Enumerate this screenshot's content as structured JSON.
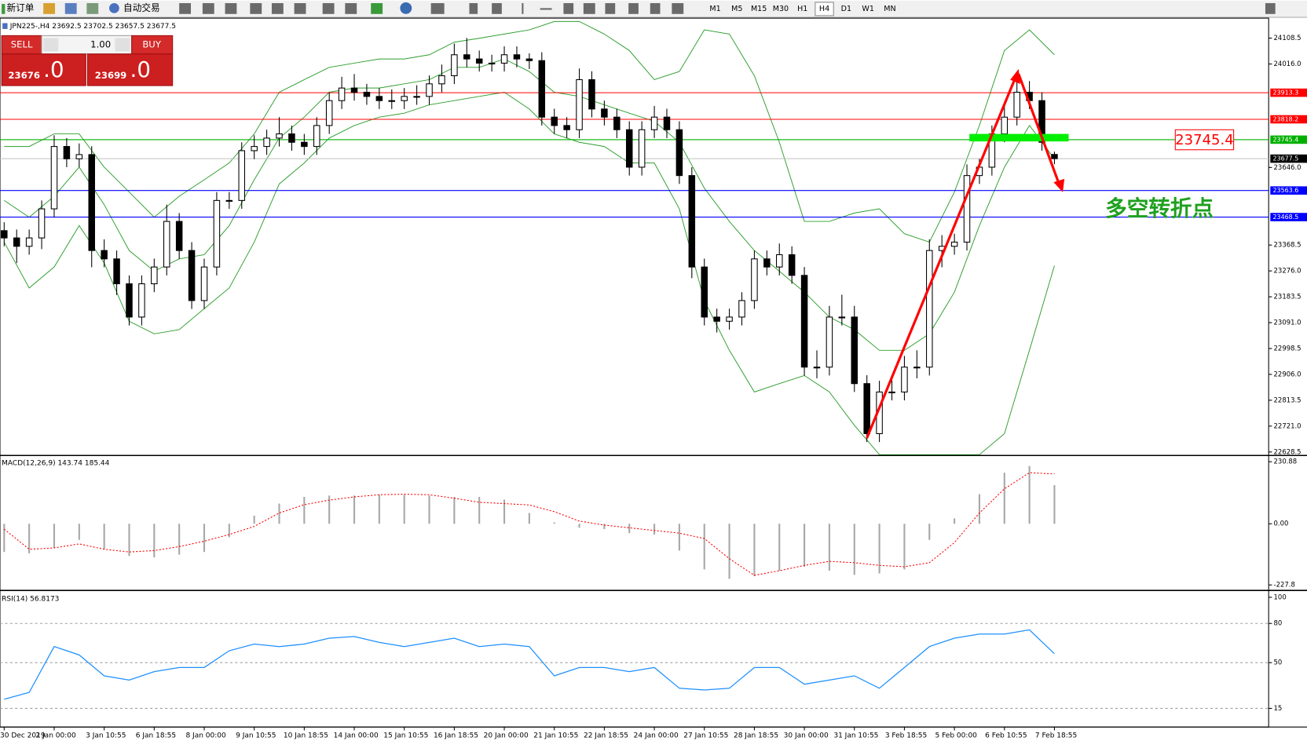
{
  "toolbar": {
    "new_order": "新订单",
    "auto_trade": "自动交易",
    "timeframes": [
      "M1",
      "M5",
      "M15",
      "M30",
      "H1",
      "H4",
      "D1",
      "W1",
      "MN"
    ],
    "active_timeframe": "H4"
  },
  "trade_panel": {
    "sell": "SELL",
    "buy": "BUY",
    "lots": "1.00",
    "sell_price": "23676",
    "sell_pips": ".0",
    "buy_price": "23699",
    "buy_pips": ".0"
  },
  "annotations": {
    "level_note": "23745.4",
    "turning_point": "多空转折点"
  },
  "time_axis": [
    "30 Dec 2019",
    "2 Jan 00:00",
    "3 Jan 10:55",
    "6 Jan 18:55",
    "8 Jan 00:00",
    "9 Jan 10:55",
    "10 Jan 18:55",
    "14 Jan 00:00",
    "15 Jan 10:55",
    "16 Jan 18:55",
    "20 Jan 00:00",
    "21 Jan 10:55",
    "22 Jan 18:55",
    "24 Jan 00:00",
    "27 Jan 10:55",
    "28 Jan 18:55",
    "30 Jan 00:00",
    "31 Jan 10:55",
    "3 Feb 18:55",
    "5 Feb 00:00",
    "6 Feb 10:55",
    "7 Feb 18:55"
  ],
  "chart_data": [
    {
      "type": "candlestick",
      "title": "JPN225-,H4  23692.5 23702.5 23657.5 23677.5",
      "open": [
        23420,
        23394,
        23364,
        23394,
        23498,
        23721,
        23677,
        23692,
        23349,
        23319,
        23230,
        23111,
        23230,
        23290,
        23453,
        23349,
        23170,
        23290,
        23528,
        23528,
        23706,
        23721,
        23751,
        23766,
        23736,
        23721,
        23796,
        23885,
        23930,
        23915,
        23900,
        23885,
        23885,
        23900,
        23900,
        23945,
        23974,
        24049,
        24034,
        24019,
        24019,
        24049,
        24034,
        24028,
        23826,
        23796,
        23781,
        23960,
        23855,
        23826,
        23781,
        23647,
        23781,
        23826,
        23781,
        23617,
        23290,
        23111,
        23096,
        23111,
        23170,
        23319,
        23290,
        23334,
        23260,
        22932,
        22932,
        23111,
        23111,
        22873,
        22694,
        22843,
        22843,
        22932,
        22932,
        23349,
        23364,
        23379,
        23617,
        23647,
        23766,
        23826,
        23915,
        23885,
        23692.5
      ],
      "high": [
        23450,
        23424,
        23424,
        23528,
        23761,
        23751,
        23732,
        23722,
        23389,
        23349,
        23260,
        23260,
        23320,
        23513,
        23483,
        23379,
        23320,
        23558,
        23558,
        23736,
        23761,
        23781,
        23826,
        23796,
        23766,
        23826,
        23915,
        23970,
        23980,
        23945,
        23930,
        23925,
        23930,
        23940,
        23975,
        24014,
        24089,
        24109,
        24064,
        24049,
        24079,
        24079,
        24054,
        24058,
        23856,
        23826,
        24000,
        23990,
        23885,
        23856,
        23811,
        23811,
        23866,
        23856,
        23811,
        23647,
        23320,
        23141,
        23141,
        23200,
        23349,
        23349,
        23374,
        23364,
        23290,
        22992,
        23151,
        23191,
        23151,
        22903,
        22883,
        22903,
        22972,
        22992,
        23389,
        23404,
        23409,
        23657,
        23677,
        23796,
        23866,
        23975,
        23955,
        23915,
        23702.5
      ],
      "low": [
        23364,
        23304,
        23334,
        23354,
        23468,
        23647,
        23647,
        23289,
        23289,
        23190,
        23081,
        23081,
        23200,
        23260,
        23319,
        23140,
        23140,
        23260,
        23498,
        23498,
        23676,
        23691,
        23721,
        23706,
        23691,
        23691,
        23766,
        23855,
        23885,
        23870,
        23855,
        23855,
        23855,
        23870,
        23870,
        23915,
        23944,
        24004,
        23989,
        23989,
        23989,
        24004,
        23998,
        23796,
        23766,
        23751,
        23751,
        23825,
        23796,
        23751,
        23617,
        23617,
        23751,
        23751,
        23587,
        23250,
        23081,
        23056,
        23066,
        23081,
        23140,
        23260,
        23260,
        23230,
        22902,
        22892,
        22902,
        23081,
        22843,
        22664,
        22664,
        22813,
        22813,
        22892,
        22902,
        23289,
        23334,
        23349,
        23587,
        23617,
        23736,
        23796,
        23855,
        23706,
        23657.5
      ],
      "close": [
        23394,
        23364,
        23394,
        23498,
        23721,
        23677,
        23692,
        23349,
        23319,
        23230,
        23111,
        23230,
        23290,
        23453,
        23349,
        23170,
        23290,
        23528,
        23528,
        23706,
        23721,
        23751,
        23766,
        23736,
        23721,
        23796,
        23885,
        23930,
        23915,
        23900,
        23885,
        23885,
        23900,
        23900,
        23945,
        23974,
        24049,
        24034,
        24019,
        24019,
        24049,
        24034,
        24028,
        23826,
        23796,
        23781,
        23960,
        23855,
        23826,
        23781,
        23647,
        23781,
        23826,
        23781,
        23617,
        23290,
        23111,
        23096,
        23111,
        23170,
        23319,
        23290,
        23334,
        23260,
        22932,
        22932,
        23111,
        23111,
        22873,
        22694,
        22843,
        22843,
        22932,
        22932,
        23349,
        23364,
        23379,
        23617,
        23647,
        23766,
        23826,
        23915,
        23885,
        23736,
        23677.5
      ],
      "bands": {
        "color": "#2e9e2e",
        "upper": [
          23721,
          23721,
          23766,
          23766,
          23647,
          23558,
          23468,
          23543,
          23602,
          23662,
          23766,
          23915,
          23960,
          24004,
          24019,
          24034,
          24034,
          24049,
          24094,
          24108,
          24123,
          24138,
          24168,
          24168,
          24123,
          24064,
          23960,
          23989,
          24138,
          24123,
          23974,
          23736,
          23453,
          23453,
          23483,
          23498,
          23409,
          23379,
          23558,
          23796,
          24064,
          24138,
          24049
        ],
        "middle": [
          23528,
          23468,
          23543,
          23647,
          23513,
          23349,
          23275,
          23319,
          23334,
          23438,
          23602,
          23751,
          23826,
          23915,
          23930,
          23930,
          23945,
          23960,
          24004,
          24004,
          24034,
          23989,
          23915,
          23900,
          23870,
          23840,
          23811,
          23736,
          23572,
          23453,
          23349,
          23275,
          23200,
          23111,
          23066,
          22992,
          22992,
          23051,
          23200,
          23438,
          23647,
          23796,
          23677
        ],
        "lower": [
          23379,
          23215,
          23290,
          23438,
          23304,
          23096,
          23051,
          23066,
          23141,
          23215,
          23379,
          23587,
          23662,
          23751,
          23796,
          23826,
          23840,
          23870,
          23885,
          23900,
          23915,
          23855,
          23766,
          23736,
          23721,
          23662,
          23662,
          23498,
          23170,
          22992,
          22843,
          22873,
          22902,
          22843,
          22724,
          22619,
          22619,
          22619,
          22619,
          22619,
          22694,
          22992,
          23295
        ]
      },
      "levels": [
        {
          "value": 23913.3,
          "label": "23913.3",
          "color": "#ff0000"
        },
        {
          "value": 23818.2,
          "label": "23818.2",
          "color": "#ff0000"
        },
        {
          "value": 23745.4,
          "label": "23745.4",
          "color": "#00b000"
        },
        {
          "value": 23677.5,
          "label": "23677.5",
          "color": "#000000"
        },
        {
          "value": 23563.6,
          "label": "23563.6",
          "color": "#0000ff"
        },
        {
          "value": 23468.5,
          "label": "23468.5",
          "color": "#0000ff"
        }
      ],
      "ylim": [
        22619,
        24177
      ],
      "yticks": [
        {
          "value": 24108.5,
          "label": "24108.5"
        },
        {
          "value": 24016.0,
          "label": "24016.0"
        },
        {
          "value": 23646.0,
          "label": "23646.0"
        },
        {
          "value": 23368.5,
          "label": "23368.5"
        },
        {
          "value": 23276.0,
          "label": "23276.0"
        },
        {
          "value": 23183.5,
          "label": "23183.5"
        },
        {
          "value": 23091.0,
          "label": "23091.0"
        },
        {
          "value": 22998.5,
          "label": "22998.5"
        },
        {
          "value": 22906.0,
          "label": "22906.0"
        },
        {
          "value": 22813.5,
          "label": "22813.5"
        },
        {
          "value": 22721.0,
          "label": "22721.0"
        },
        {
          "value": 22628.5,
          "label": "22628.5"
        }
      ]
    },
    {
      "type": "macd",
      "title": "MACD(12,26,9) 143.74 185.44",
      "histogram_color": "#a8a8a8",
      "signal_color": "#ff0000",
      "histogram": [
        -105,
        -110,
        -90,
        -60,
        -95,
        -120,
        -125,
        -115,
        -105,
        -50,
        30,
        75,
        100,
        105,
        105,
        108,
        108,
        105,
        100,
        100,
        90,
        40,
        5,
        -15,
        -20,
        -35,
        -40,
        -100,
        -170,
        -205,
        -195,
        -175,
        -160,
        -175,
        -190,
        -185,
        -170,
        -60,
        20,
        110,
        190,
        215,
        143.74
      ],
      "signal": [
        -20,
        -95,
        -90,
        -75,
        -95,
        -105,
        -100,
        -85,
        -65,
        -40,
        -10,
        40,
        71,
        88,
        100,
        108,
        110,
        108,
        95,
        80,
        75,
        70,
        45,
        10,
        -5,
        -15,
        -25,
        -35,
        -55,
        -130,
        -192,
        -175,
        -155,
        -140,
        -145,
        -155,
        -160,
        -145,
        -70,
        40,
        130,
        190,
        185.44
      ],
      "ylim": [
        -242,
        248
      ],
      "yticks": [
        {
          "value": 230.88,
          "label": "230.88"
        },
        {
          "value": 0,
          "label": "0.00"
        },
        {
          "value": -227.8,
          "label": "-227.8"
        }
      ]
    },
    {
      "type": "line",
      "title": "RSI(14) 56.8173",
      "color": "#1e90ff",
      "values": [
        22.0,
        27.2,
        62.3,
        55.9,
        39.9,
        36.7,
        43.1,
        46.3,
        46.3,
        59.1,
        64.2,
        62.3,
        64.2,
        68.7,
        70.0,
        65.5,
        62.3,
        65.5,
        68.7,
        62.3,
        64.2,
        62.3,
        39.9,
        46.3,
        46.3,
        43.1,
        46.3,
        30.4,
        29.1,
        30.4,
        46.3,
        46.3,
        33.5,
        36.7,
        39.9,
        30.4,
        46.3,
        62.3,
        68.7,
        71.9,
        71.9,
        75.1,
        56.8173
      ],
      "ylim": [
        2,
        104
      ],
      "yticks": [
        100,
        80,
        50,
        15
      ],
      "grid": [
        80,
        50,
        15
      ]
    }
  ]
}
